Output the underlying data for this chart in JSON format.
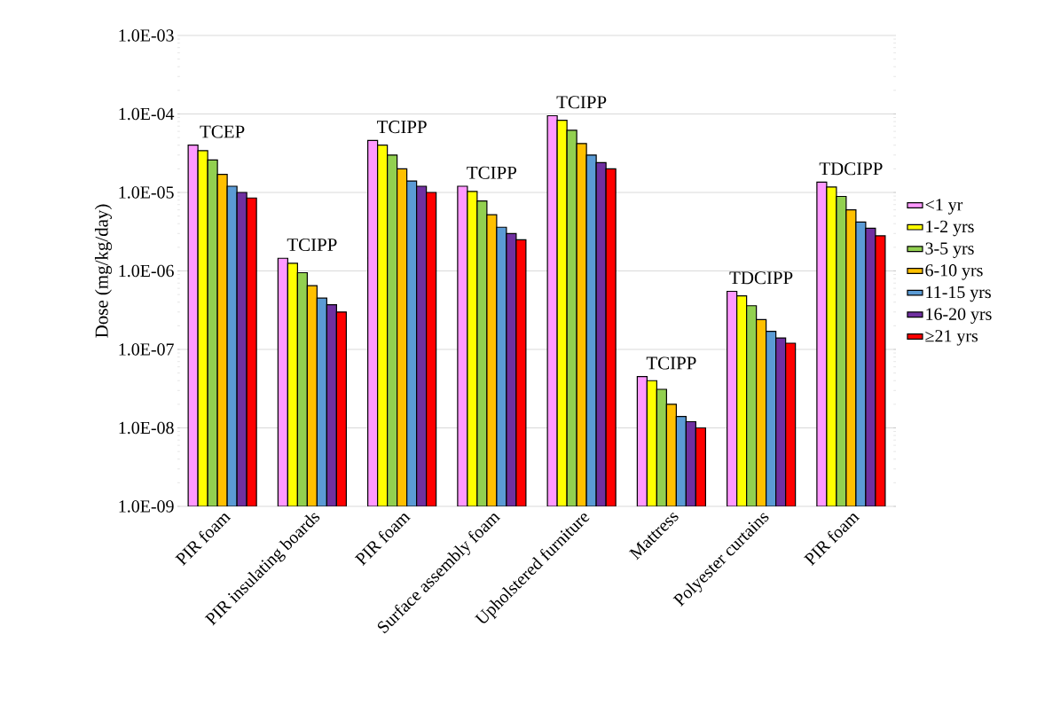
{
  "chart_data": {
    "type": "bar",
    "ylabel": "Dose (mg/kg/day)",
    "log": "y",
    "grid": "y",
    "legend": "right",
    "categories": [
      "PIR foam",
      "PIR insulating boards",
      "PIR foam",
      "Surface assembly foam",
      "Upholstered furniture",
      "Mattress",
      "Polyester curtains",
      "PIR foam"
    ],
    "ylim": [
      1e-09,
      0.001
    ],
    "yticks": [
      {
        "value": 1e-09,
        "label": "1.0E-09"
      },
      {
        "value": 1e-08,
        "label": "1.0E-08"
      },
      {
        "value": 1e-07,
        "label": "1.0E-07"
      },
      {
        "value": 1e-06,
        "label": "1.0E-06"
      },
      {
        "value": 1e-05,
        "label": "1.0E-05"
      },
      {
        "value": 0.0001,
        "label": "1.0E-04"
      },
      {
        "value": 0.001,
        "label": "1.0E-03"
      }
    ],
    "series": [
      {
        "name": "<1 yr",
        "color": "#ff99ff",
        "values": [
          4e-05,
          1.45e-06,
          4.6e-05,
          1.2e-05,
          9.5e-05,
          4.5e-08,
          5.5e-07,
          1.35e-05
        ]
      },
      {
        "name": "1-2 yrs",
        "color": "#ffff00",
        "values": [
          3.4e-05,
          1.25e-06,
          4e-05,
          1.03e-05,
          8.3e-05,
          4e-08,
          4.8e-07,
          1.17e-05
        ]
      },
      {
        "name": "3-5 yrs",
        "color": "#92d050",
        "values": [
          2.6e-05,
          9.5e-07,
          3e-05,
          7.8e-06,
          6.2e-05,
          3.1e-08,
          3.6e-07,
          8.9e-06
        ]
      },
      {
        "name": "6-10 yrs",
        "color": "#ffc000",
        "values": [
          1.7e-05,
          6.5e-07,
          2e-05,
          5.2e-06,
          4.2e-05,
          2e-08,
          2.4e-07,
          6e-06
        ]
      },
      {
        "name": "11-15 yrs",
        "color": "#5b9bd5",
        "values": [
          1.2e-05,
          4.5e-07,
          1.4e-05,
          3.6e-06,
          3e-05,
          1.4e-08,
          1.7e-07,
          4.2e-06
        ]
      },
      {
        "name": "16-20 yrs",
        "color": "#7030a0",
        "values": [
          1e-05,
          3.7e-07,
          1.2e-05,
          3e-06,
          2.4e-05,
          1.2e-08,
          1.4e-07,
          3.5e-06
        ]
      },
      {
        "name": "≥21 yrs",
        "color": "#ff0000",
        "values": [
          8.5e-06,
          3e-07,
          1e-05,
          2.5e-06,
          2e-05,
          1e-08,
          1.2e-07,
          2.8e-06
        ]
      }
    ],
    "annotations": [
      "TCEP",
      "TCIPP",
      "TCIPP",
      "TCIPP",
      "TCIPP",
      "TCIPP",
      "TDCIPP",
      "TDCIPP"
    ]
  }
}
